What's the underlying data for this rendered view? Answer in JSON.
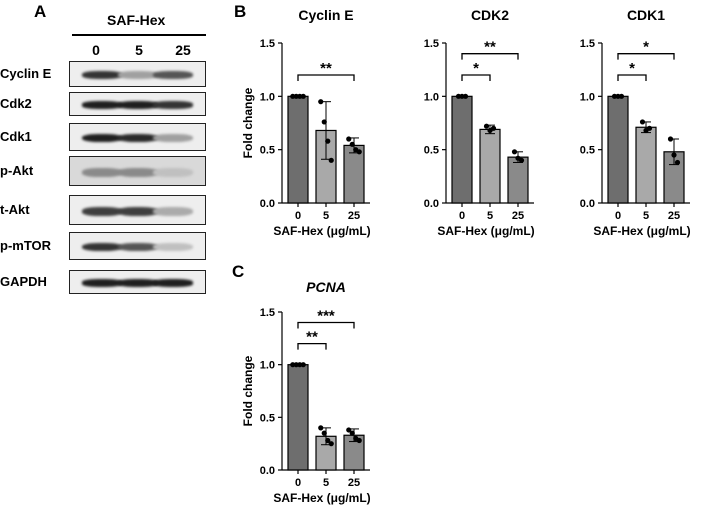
{
  "panel_letters": {
    "a": "A",
    "b": "B",
    "c": "C"
  },
  "western_blot": {
    "title": "SAF-Hex",
    "concentrations": [
      "0",
      "5",
      "25"
    ],
    "rows": [
      {
        "label": "Cyclin E",
        "intensities": [
          0.85,
          0.35,
          0.7
        ]
      },
      {
        "label": "Cdk2",
        "intensities": [
          0.95,
          0.95,
          0.85
        ]
      },
      {
        "label": "Cdk1",
        "intensities": [
          0.95,
          0.9,
          0.35
        ]
      },
      {
        "label": "p-Akt",
        "intensities": [
          0.45,
          0.45,
          0.2
        ]
      },
      {
        "label": "t-Akt",
        "intensities": [
          0.8,
          0.8,
          0.3
        ]
      },
      {
        "label": "p-mTOR",
        "intensities": [
          0.85,
          0.7,
          0.2
        ]
      },
      {
        "label": "GAPDH",
        "intensities": [
          0.95,
          0.95,
          0.95
        ]
      }
    ]
  },
  "chart_data": [
    {
      "type": "bar",
      "title": "Cyclin E",
      "title_italic": false,
      "ylabel": "Fold change",
      "xlabel": "SAF-Hex (μg/mL)",
      "categories": [
        "0",
        "5",
        "25"
      ],
      "values": [
        1.0,
        0.68,
        0.54
      ],
      "errors": [
        0,
        0.27,
        0.07
      ],
      "points": [
        [
          1.0,
          1.0,
          1.0,
          1.0
        ],
        [
          0.95,
          0.76,
          0.58,
          0.4
        ],
        [
          0.6,
          0.55,
          0.5,
          0.48
        ]
      ],
      "bar_colors": [
        "#6e6e6e",
        "#a9a9a9",
        "#8a8a8a"
      ],
      "ylim": [
        0,
        1.5
      ],
      "yticks": [
        "0.0",
        "0.5",
        "1.0",
        "1.5"
      ],
      "brackets": [
        {
          "from": 0,
          "to": 2,
          "label": "**"
        }
      ]
    },
    {
      "type": "bar",
      "title": "CDK2",
      "title_italic": false,
      "ylabel": "",
      "xlabel": "SAF-Hex (μg/mL)",
      "categories": [
        "0",
        "5",
        "25"
      ],
      "values": [
        1.0,
        0.69,
        0.43
      ],
      "errors": [
        0,
        0.04,
        0.05
      ],
      "points": [
        [
          1.0,
          1.0,
          1.0
        ],
        [
          0.72,
          0.68,
          0.7
        ],
        [
          0.48,
          0.42,
          0.4
        ]
      ],
      "bar_colors": [
        "#6e6e6e",
        "#a9a9a9",
        "#8a8a8a"
      ],
      "ylim": [
        0,
        1.5
      ],
      "yticks": [
        "0.0",
        "0.5",
        "1.0",
        "1.5"
      ],
      "brackets": [
        {
          "from": 0,
          "to": 1,
          "label": "*"
        },
        {
          "from": 0,
          "to": 2,
          "label": "**"
        }
      ]
    },
    {
      "type": "bar",
      "title": "CDK1",
      "title_italic": false,
      "ylabel": "",
      "xlabel": "SAF-Hex (μg/mL)",
      "categories": [
        "0",
        "5",
        "25"
      ],
      "values": [
        1.0,
        0.71,
        0.48
      ],
      "errors": [
        0,
        0.05,
        0.12
      ],
      "points": [
        [
          1.0,
          1.0,
          1.0
        ],
        [
          0.76,
          0.68,
          0.7
        ],
        [
          0.6,
          0.45,
          0.38
        ]
      ],
      "bar_colors": [
        "#6e6e6e",
        "#a9a9a9",
        "#8a8a8a"
      ],
      "ylim": [
        0,
        1.5
      ],
      "yticks": [
        "0.0",
        "0.5",
        "1.0",
        "1.5"
      ],
      "brackets": [
        {
          "from": 0,
          "to": 1,
          "label": "*"
        },
        {
          "from": 0,
          "to": 2,
          "label": "*"
        }
      ]
    },
    {
      "type": "bar",
      "title": "PCNA",
      "title_italic": true,
      "ylabel": "Fold change",
      "xlabel": "SAF-Hex (μg/mL)",
      "categories": [
        "0",
        "5",
        "25"
      ],
      "values": [
        1.0,
        0.32,
        0.33
      ],
      "errors": [
        0,
        0.08,
        0.06
      ],
      "points": [
        [
          1.0,
          1.0,
          1.0,
          1.0
        ],
        [
          0.4,
          0.35,
          0.28,
          0.25
        ],
        [
          0.38,
          0.35,
          0.3,
          0.28
        ]
      ],
      "bar_colors": [
        "#6e6e6e",
        "#a9a9a9",
        "#8a8a8a"
      ],
      "ylim": [
        0,
        1.5
      ],
      "yticks": [
        "0.0",
        "0.5",
        "1.0",
        "1.5"
      ],
      "brackets": [
        {
          "from": 0,
          "to": 1,
          "label": "**"
        },
        {
          "from": 0,
          "to": 2,
          "label": "***"
        }
      ]
    }
  ]
}
